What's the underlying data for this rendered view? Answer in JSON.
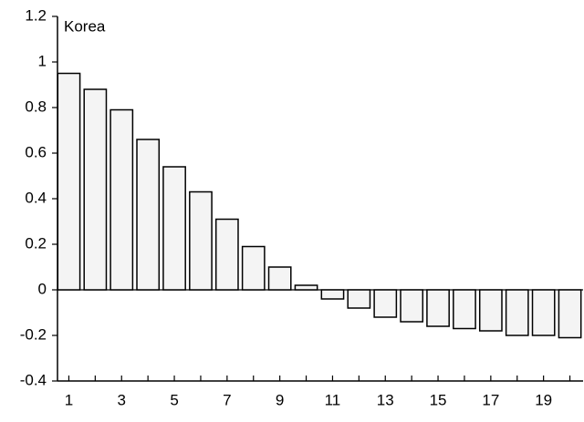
{
  "chart_data": {
    "type": "bar",
    "title": "Korea",
    "categories": [
      1,
      null,
      3,
      null,
      5,
      null,
      7,
      null,
      9,
      null,
      11,
      null,
      13,
      null,
      15,
      null,
      17,
      null,
      19,
      null
    ],
    "values": [
      0.95,
      0.88,
      0.79,
      0.66,
      0.54,
      0.43,
      0.31,
      0.19,
      0.1,
      0.02,
      -0.04,
      -0.08,
      -0.12,
      -0.14,
      -0.16,
      -0.17,
      -0.18,
      -0.2,
      -0.2,
      -0.21
    ],
    "color": "#f4f4f4",
    "ylim": [
      -0.4,
      1.2
    ],
    "yticks": [
      -0.4,
      -0.2,
      0,
      0.2,
      0.4,
      0.6,
      0.8,
      1,
      1.2
    ],
    "grid": false
  }
}
